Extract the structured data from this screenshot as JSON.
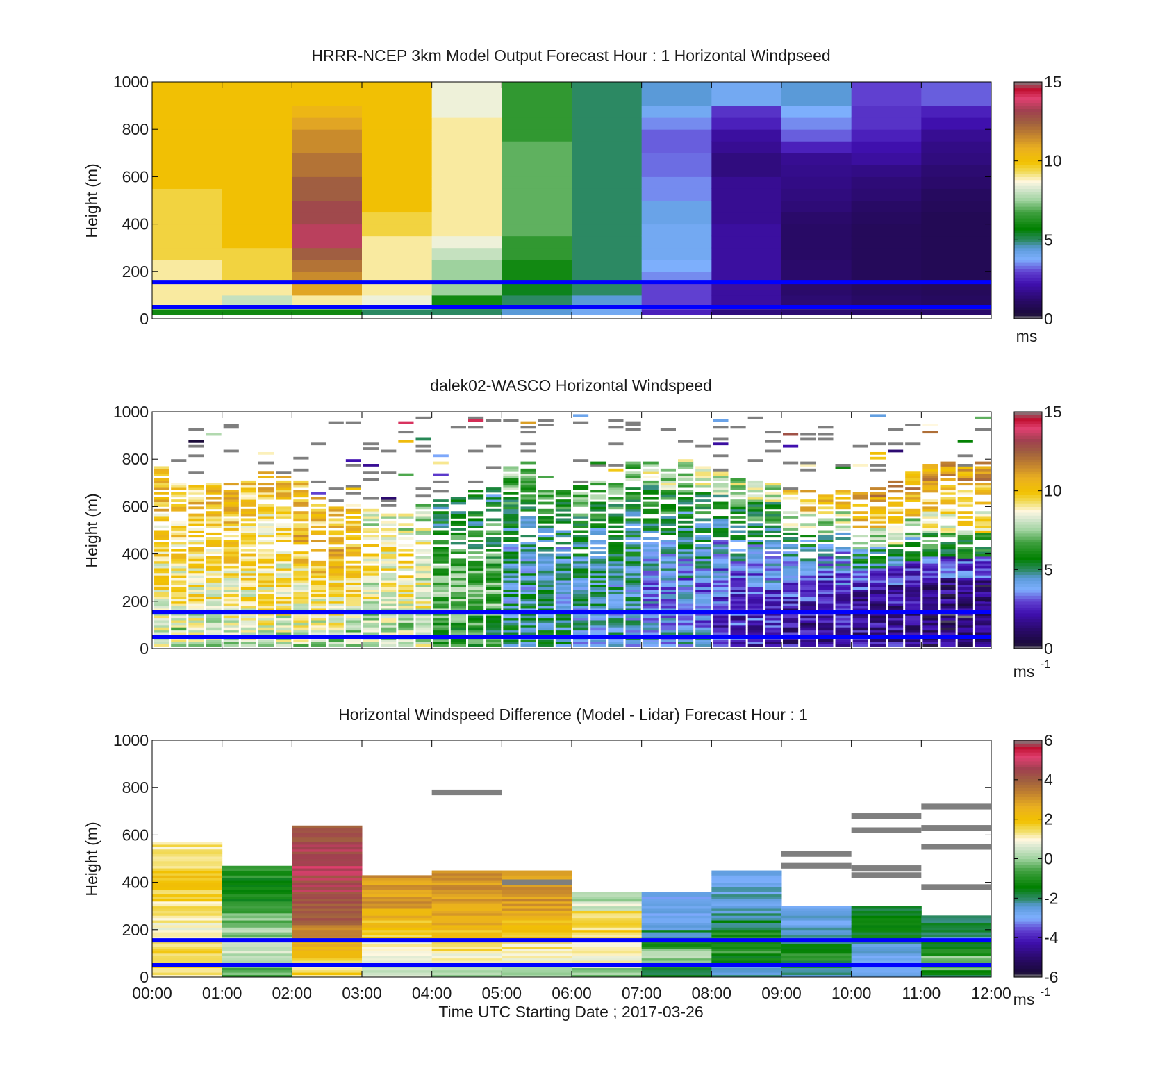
{
  "figure": {
    "xlabel": "Time UTC  Starting Date ; 2017-03-26"
  },
  "chart_data": [
    {
      "type": "heatmap",
      "title": "HRRR-NCEP 3km Model Output   Forecast Hour : 1 Horizontal Windpseed",
      "ylabel": "Height (m)",
      "ylim": [
        0,
        1000
      ],
      "yticks": [
        "0",
        "200",
        "400",
        "600",
        "800",
        "1000"
      ],
      "xlim_hours": [
        0,
        12
      ],
      "x_hours": [
        0.5,
        1.5,
        2.5,
        3.5,
        4.5,
        5.5,
        6.5,
        7.5,
        8.5,
        9.5,
        10.5,
        11.5
      ],
      "heights_m": [
        25,
        75,
        125,
        175,
        225,
        275,
        325,
        375,
        425,
        475,
        525,
        575,
        625,
        675,
        725,
        775,
        825,
        875,
        925,
        975
      ],
      "colorbar": {
        "min": 0,
        "max": 15,
        "ticks": [
          "0",
          "5",
          "10",
          "15"
        ],
        "unit": "ms"
      },
      "reference_lines_m": [
        50,
        155
      ],
      "line_color": "#0000ff",
      "values_ms": [
        [
          6,
          9,
          9,
          9,
          9,
          9.5,
          9.5,
          9.5,
          9.5,
          9.5,
          9.5,
          10,
          10,
          10,
          10,
          10,
          10,
          10,
          10,
          10
        ],
        [
          6,
          8,
          9,
          9.5,
          9.5,
          9.5,
          10,
          10,
          10,
          10,
          10,
          10,
          10,
          10,
          10,
          10,
          10,
          10,
          10,
          10
        ],
        [
          6,
          9,
          11,
          11.5,
          12,
          12.5,
          13.5,
          13.5,
          13,
          13,
          12.5,
          12.5,
          12,
          12,
          11.5,
          11.5,
          11,
          10.5,
          10,
          10
        ],
        [
          5,
          8.5,
          9,
          9,
          9,
          9,
          9,
          9.5,
          9.5,
          10,
          10,
          10,
          10,
          10,
          10,
          10,
          10,
          10,
          10,
          10
        ],
        [
          5,
          6,
          7.5,
          7.5,
          7.5,
          8,
          8.5,
          9,
          9,
          9,
          9,
          9,
          9,
          9,
          9,
          9,
          9,
          8.5,
          8.5,
          8.5
        ],
        [
          4.5,
          5,
          5.5,
          6,
          6,
          6.5,
          6.5,
          7,
          7,
          7,
          7,
          7,
          7,
          7,
          7,
          6.5,
          6.5,
          6.5,
          6.5,
          6.5
        ],
        [
          4,
          4.5,
          5,
          5,
          5,
          5,
          5,
          5,
          5,
          5,
          5,
          5,
          5,
          5,
          5,
          5,
          5,
          5,
          5,
          5
        ],
        [
          2.5,
          3,
          3,
          3.5,
          3.8,
          4,
          4,
          4,
          4.2,
          4.2,
          3.5,
          3.5,
          3.3,
          3.3,
          3.2,
          3.2,
          3.5,
          4,
          4.5,
          4.5
        ],
        [
          1.5,
          2,
          2,
          2,
          2,
          2,
          2,
          2,
          1.8,
          1.8,
          1.8,
          1.8,
          1.5,
          1.5,
          1.8,
          2,
          2.5,
          2.8,
          4,
          4
        ],
        [
          1.3,
          1.3,
          1.2,
          1.2,
          1.2,
          1.1,
          1.1,
          1.1,
          1.2,
          1.4,
          1.5,
          1.6,
          1.7,
          1.8,
          2.5,
          3.2,
          3.5,
          3.8,
          4.5,
          4.5
        ],
        [
          1.2,
          1.1,
          1,
          0.9,
          0.9,
          0.9,
          0.9,
          0.9,
          1,
          1.1,
          1.3,
          1.4,
          1.6,
          2,
          2.2,
          2.5,
          2.8,
          2.8,
          3,
          3
        ],
        [
          1.2,
          1,
          0.9,
          0.8,
          0.8,
          0.8,
          0.8,
          0.8,
          0.8,
          0.9,
          1,
          1.2,
          1.3,
          1.5,
          1.6,
          1.8,
          2.2,
          2.5,
          3.2,
          3.2
        ]
      ]
    },
    {
      "type": "heatmap",
      "title": "dalek02-WASCO  Horizontal Windspeed",
      "ylabel": "Height (m)",
      "ylim": [
        0,
        1000
      ],
      "yticks": [
        "0",
        "200",
        "400",
        "600",
        "800",
        "1000"
      ],
      "xlim_hours": [
        0,
        12
      ],
      "colorbar": {
        "min": 0,
        "max": 15,
        "ticks": [
          "0",
          "5",
          "10",
          "15"
        ],
        "unit": "ms",
        "unit_exp": "-1"
      },
      "reference_lines_m": [
        50,
        155
      ],
      "line_color": "#0000ff",
      "columns_per_hour": 4,
      "column_top_m": [
        760,
        720,
        680,
        700,
        690,
        700,
        760,
        720,
        700,
        640,
        590,
        600,
        580,
        580,
        560,
        600,
        620,
        640,
        660,
        700,
        760,
        780,
        720,
        700,
        680,
        700,
        700,
        780,
        780,
        760,
        800,
        760,
        740,
        720,
        700,
        700,
        660,
        660,
        640,
        660,
        660,
        680,
        700,
        740,
        780,
        780,
        760,
        780
      ],
      "profile_speed_ms": [
        [
          8,
          8.5,
          9,
          9,
          9.5,
          9.5,
          10,
          10
        ],
        [
          8,
          8.5,
          9,
          9,
          9.5,
          9.5,
          10,
          10
        ],
        [
          8,
          8.5,
          9,
          9.5,
          10,
          10.5,
          10,
          10
        ],
        [
          8,
          8,
          8.5,
          8.5,
          9,
          9,
          8.5,
          8
        ],
        [
          6,
          6.5,
          7,
          7,
          6.5,
          6,
          5.5,
          5
        ],
        [
          5,
          5,
          4.5,
          4.5,
          4.5,
          5,
          6,
          7
        ],
        [
          4.5,
          4.5,
          4.5,
          5,
          5,
          5,
          6,
          7
        ],
        [
          4,
          3.5,
          3.5,
          4,
          4.5,
          5,
          6,
          8
        ],
        [
          2.5,
          2.5,
          3,
          3.5,
          4,
          5,
          6,
          8
        ],
        [
          2,
          2,
          2.5,
          3,
          4,
          5,
          8,
          10
        ],
        [
          2,
          1.8,
          2,
          3,
          5,
          8,
          10,
          11
        ],
        [
          1.5,
          1.2,
          1.5,
          3,
          6,
          9,
          10,
          11
        ]
      ],
      "sparse_upper_levels": true
    },
    {
      "type": "heatmap",
      "title": "Horizontal Windspeed Difference (Model - Lidar) Forecast Hour : 1",
      "ylabel": "Height (m)",
      "ylim": [
        0,
        1000
      ],
      "yticks": [
        "0",
        "200",
        "400",
        "600",
        "800",
        "1000"
      ],
      "xticks": [
        "00:00",
        "01:00",
        "02:00",
        "03:00",
        "04:00",
        "05:00",
        "06:00",
        "07:00",
        "08:00",
        "09:00",
        "10:00",
        "11:00",
        "12:00"
      ],
      "colorbar": {
        "min": -6,
        "max": 6,
        "ticks": [
          "-6",
          "-4",
          "-2",
          "0",
          "2",
          "4",
          "6"
        ],
        "unit": "ms",
        "unit_exp": "-1"
      },
      "reference_lines_m": [
        50,
        155
      ],
      "line_color": "#0000ff",
      "column_top_m": [
        570,
        470,
        640,
        430,
        450,
        450,
        360,
        360,
        450,
        300,
        300,
        260
      ],
      "diff_profile_ms": [
        [
          1.5,
          1.5,
          1.2,
          1.0,
          1.3,
          1.6,
          1.8,
          1.5,
          1.2
        ],
        [
          -0.5,
          0.5,
          0.3,
          0.0,
          -0.3,
          -0.8,
          -1.2,
          -1.2,
          -1.0
        ],
        [
          1.5,
          2.5,
          3.5,
          4.0,
          4.2,
          4.5,
          4.8,
          4.6,
          4.0
        ],
        [
          0.5,
          1.0,
          1.2,
          1.5,
          2.0,
          2.5,
          3.0,
          3.0,
          3.0
        ],
        [
          0.3,
          1.0,
          1.5,
          2.0,
          2.5,
          2.8,
          3.0,
          3.0,
          3.0
        ],
        [
          0.3,
          1.0,
          1.3,
          1.8,
          2.2,
          2.8,
          3.0,
          3.0,
          3.0
        ],
        [
          0.0,
          0.8,
          1.2,
          1.3,
          1.5,
          1.5,
          1.5,
          0.5,
          0.0
        ],
        [
          -2.0,
          -0.5,
          0.3,
          -1.0,
          -2.0,
          -2.5,
          -2.8,
          -2.8,
          -2.8
        ],
        [
          -2.5,
          -1.5,
          -0.8,
          -1.2,
          -1.8,
          -2.2,
          -2.5,
          -2.5,
          -2.5
        ],
        [
          -2.0,
          -1.5,
          -1.0,
          -1.5,
          -2.0,
          -2.5,
          -2.5,
          -2.5,
          -2.5
        ],
        [
          -2.5,
          -2.5,
          -3.0,
          -2.5,
          -2.0,
          -1.5,
          -1.5,
          -1.5,
          -1.5
        ],
        [
          -1.5,
          -0.5,
          -0.3,
          -1.0,
          -1.5,
          -2.0,
          -2.0,
          -2.0,
          -2.0
        ]
      ],
      "nodata_bars": [
        {
          "t0": 4,
          "t1": 5,
          "h": 780
        },
        {
          "t0": 5,
          "t1": 6,
          "h": 400
        },
        {
          "t0": 9,
          "t1": 10,
          "h": 470
        },
        {
          "t0": 9,
          "t1": 10,
          "h": 520
        },
        {
          "t0": 10,
          "t1": 11,
          "h": 620
        },
        {
          "t0": 10,
          "t1": 11,
          "h": 680
        },
        {
          "t0": 10,
          "t1": 11,
          "h": 430
        },
        {
          "t0": 10,
          "t1": 11,
          "h": 460
        },
        {
          "t0": 11,
          "t1": 12,
          "h": 720
        },
        {
          "t0": 11,
          "t1": 12,
          "h": 630
        },
        {
          "t0": 11,
          "t1": 12,
          "h": 550
        },
        {
          "t0": 11,
          "t1": 12,
          "h": 380
        }
      ]
    }
  ],
  "colormap": {
    "speed": [
      [
        0.0,
        "#7f7f7f"
      ],
      [
        0.02,
        "#1a0a3a"
      ],
      [
        0.08,
        "#2a0a6a"
      ],
      [
        0.15,
        "#4010b0"
      ],
      [
        0.2,
        "#6040d0"
      ],
      [
        0.25,
        "#7fb0ff"
      ],
      [
        0.3,
        "#5a9ad8"
      ],
      [
        0.33,
        "#2f8a6a"
      ],
      [
        0.38,
        "#008000"
      ],
      [
        0.45,
        "#40a040"
      ],
      [
        0.5,
        "#9ed29e"
      ],
      [
        0.55,
        "#d8e8d0"
      ],
      [
        0.58,
        "#fff8e0"
      ],
      [
        0.62,
        "#f2dc60"
      ],
      [
        0.66,
        "#f2c200"
      ],
      [
        0.72,
        "#eab020"
      ],
      [
        0.78,
        "#c08030"
      ],
      [
        0.83,
        "#a06040"
      ],
      [
        0.88,
        "#a04050"
      ],
      [
        0.93,
        "#e04070"
      ],
      [
        0.97,
        "#c01030"
      ],
      [
        1.0,
        "#7f7f7f"
      ]
    ]
  }
}
